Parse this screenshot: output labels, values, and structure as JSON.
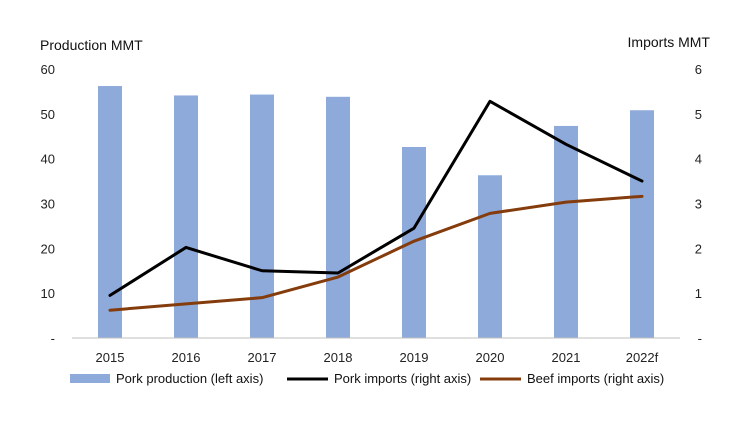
{
  "chart_data": {
    "type": "bar+line",
    "categories": [
      "2015",
      "2016",
      "2017",
      "2018",
      "2019",
      "2020",
      "2021",
      "2022f"
    ],
    "left_axis": {
      "label": "Production MMT",
      "range": [
        0,
        60
      ],
      "ticks": [
        "-",
        "10",
        "20",
        "30",
        "40",
        "50",
        "60"
      ]
    },
    "right_axis": {
      "label": "Imports MMT",
      "range": [
        0,
        6
      ],
      "ticks": [
        "-",
        "1",
        "2",
        "3",
        "4",
        "5",
        "6"
      ]
    },
    "series": [
      {
        "name": "Pork production (left axis)",
        "kind": "bar",
        "axis": "left",
        "color": "#8eaadb",
        "values": [
          56.2,
          54.1,
          54.3,
          53.8,
          42.6,
          36.3,
          47.3,
          50.8
        ]
      },
      {
        "name": "Pork imports (right axis)",
        "kind": "line",
        "axis": "right",
        "color": "#000000",
        "values": [
          0.95,
          2.02,
          1.5,
          1.45,
          2.45,
          5.28,
          4.32,
          3.5
        ]
      },
      {
        "name": "Beef imports (right axis)",
        "kind": "line",
        "axis": "right",
        "color": "#843c0c",
        "values": [
          0.62,
          0.76,
          0.9,
          1.36,
          2.16,
          2.78,
          3.03,
          3.16
        ]
      }
    ],
    "legend_position": "bottom",
    "grid": false
  }
}
